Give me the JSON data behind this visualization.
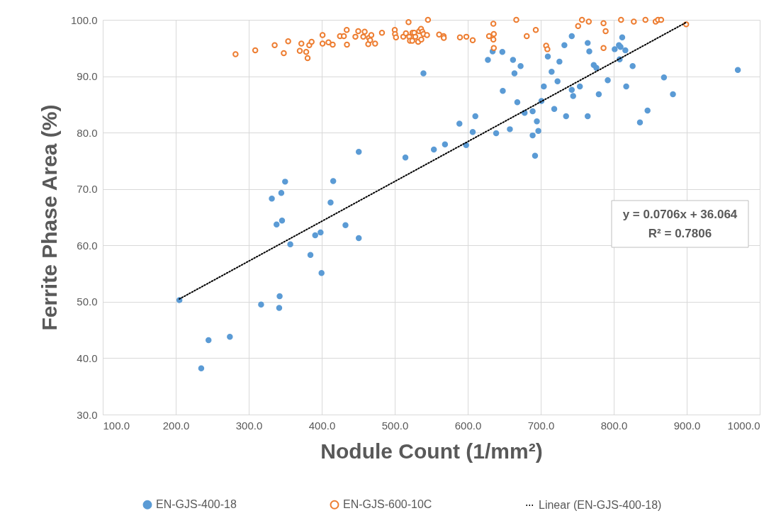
{
  "chart_data": {
    "type": "scatter",
    "xlabel": "Nodule Count (1/mm²)",
    "ylabel": "Ferrite Phase Area (%)",
    "xlim": [
      100,
      1000
    ],
    "ylim": [
      30,
      100
    ],
    "xticks": [
      {
        "value": 100,
        "label": "100.0"
      },
      {
        "value": 200,
        "label": "200.0"
      },
      {
        "value": 300,
        "label": "300.0"
      },
      {
        "value": 400,
        "label": "400.0"
      },
      {
        "value": 500,
        "label": "500.0"
      },
      {
        "value": 600,
        "label": "600.0"
      },
      {
        "value": 700,
        "label": "700.0"
      },
      {
        "value": 800,
        "label": "800.0"
      },
      {
        "value": 900,
        "label": "900.0"
      },
      {
        "value": 1000,
        "label": "1000.0"
      }
    ],
    "yticks": [
      {
        "value": 30,
        "label": "30.0"
      },
      {
        "value": 40,
        "label": "40.0"
      },
      {
        "value": 50,
        "label": "50.0"
      },
      {
        "value": 60,
        "label": "60.0"
      },
      {
        "value": 70,
        "label": "70.0"
      },
      {
        "value": 80,
        "label": "80.0"
      },
      {
        "value": 90,
        "label": "90.0"
      },
      {
        "value": 100,
        "label": "100.0"
      }
    ],
    "grid": true,
    "legend": "bottom",
    "annotations": [
      "y = 0.0706x + 36.064",
      "R² = 0.7806"
    ],
    "series": [
      {
        "name": "EN-GJS-400-18",
        "color": "#5b9bd5",
        "marker": "circle",
        "x": [
          450.7,
          514.6,
          349.8,
          415.7,
          331.6,
          344.6,
          412.1,
          338.1,
          345.6,
          432.5,
          398.4,
          391.0,
          356.9,
          450.7,
          384.5,
          399.7,
          205.0,
          342.3,
          316.9,
          341.7,
          244.9,
          274.1,
          234.9,
          539.3,
          634.1,
          647.4,
          627.6,
          662.0,
          664.0,
          672.4,
          742.5,
          732.4,
          764.3,
          766.5,
          709.7,
          725.6,
          714.9,
          772.6,
          776.2,
          801.3,
          807.1,
          809.3,
          811.6,
          815.9,
          808.1,
          825.9,
          868.8,
          881.1,
          791.8,
          817.1,
          779.5,
          753.6,
          742.5,
          744.4,
          723.0,
          704.2,
          701.0,
          648.0,
          667.9,
          688.9,
          677.9,
          718.5,
          734.7,
          764.3,
          846.3,
          835.9,
          694.7,
          696.7,
          688.9,
          692.2,
          638.9,
          657.7,
          606.8,
          610.4,
          588.6,
          597.8,
          568.8,
          553.6,
          970
        ],
        "values": [
          76.6,
          75.6,
          71.3,
          71.4,
          68.3,
          69.3,
          67.6,
          63.7,
          64.4,
          63.6,
          62.3,
          61.8,
          60.2,
          61.3,
          58.3,
          55.1,
          50.3,
          51.0,
          49.5,
          48.9,
          43.2,
          43.8,
          38.2,
          90.5,
          94.4,
          94.3,
          92.9,
          92.9,
          90.5,
          91.8,
          97.1,
          95.5,
          95.9,
          94.4,
          93.5,
          92.6,
          90.8,
          92.0,
          91.5,
          94.8,
          95.5,
          95.2,
          96.9,
          94.6,
          93.0,
          91.8,
          89.8,
          86.8,
          89.3,
          88.2,
          86.8,
          88.2,
          87.6,
          86.5,
          89.1,
          88.2,
          85.6,
          87.4,
          85.4,
          83.8,
          83.5,
          84.2,
          82.9,
          82.9,
          83.9,
          81.8,
          82.0,
          80.3,
          79.5,
          75.9,
          79.9,
          80.6,
          80.1,
          82.9,
          81.6,
          77.8,
          77.9,
          77.0,
          91.1
        ]
      },
      {
        "name": "EN-GJS-600-10C",
        "color": "#ed7d31",
        "marker": "circle",
        "x": [
          281.9,
          308.9,
          335.5,
          354.0,
          348.0,
          369.9,
          372.1,
          378.7,
          380.6,
          382.9,
          386.1,
          401.1,
          401.1,
          409.2,
          415.0,
          425.0,
          430.3,
          434.2,
          434.5,
          446.1,
          450.0,
          456.9,
          458.8,
          463.7,
          464.7,
          467.9,
          466.3,
          473.1,
          482.5,
          500.0,
          500.4,
          501.7,
          518.9,
          511.7,
          515.3,
          519.9,
          520.9,
          524.3,
          526.7,
          528.2,
          524.0,
          532.1,
          533.5,
          536.0,
          537.7,
          536.4,
          539.3,
          544.2,
          545.5,
          560.8,
          566.9,
          567.2,
          589.3,
          598.1,
          606.8,
          629.2,
          635.1,
          635.7,
          635.1,
          635.7,
          666.5,
          680.8,
          693.2,
          707.4,
          709.1,
          751.2,
          756.5,
          765.8,
          786.0,
          788.9,
          786.0,
          810.0,
          827.5,
          843.4,
          857.4,
          860.7,
          864.9,
          899.2
        ],
        "values": [
          93.9,
          94.6,
          95.5,
          96.2,
          94.1,
          94.5,
          95.8,
          94.3,
          93.2,
          95.5,
          96.1,
          97.3,
          95.8,
          96.0,
          95.6,
          97.1,
          97.1,
          98.2,
          95.6,
          97.0,
          98.0,
          97.0,
          97.9,
          95.7,
          96.8,
          97.3,
          96.4,
          95.8,
          97.7,
          98.2,
          97.5,
          96.9,
          99.6,
          97.0,
          97.6,
          97.0,
          96.3,
          97.7,
          97.7,
          97.0,
          96.3,
          96.1,
          98.0,
          98.4,
          97.9,
          96.5,
          97.5,
          97.3,
          100.0,
          97.4,
          97.1,
          96.8,
          96.9,
          97.0,
          96.4,
          97.1,
          99.3,
          97.5,
          96.5,
          95.0,
          100.0,
          97.1,
          98.2,
          95.4,
          94.8,
          98.9,
          100.0,
          99.7,
          99.4,
          98.0,
          95.0,
          100.0,
          99.7,
          100.0,
          99.7,
          100.0,
          100.0,
          99.2
        ]
      },
      {
        "name": "Linear (EN-GJS-400-18)",
        "type": "line",
        "color": "#000000",
        "line_style": "dotted",
        "x": [
          205,
          900
        ],
        "values": [
          50.5,
          99.6
        ]
      }
    ]
  }
}
